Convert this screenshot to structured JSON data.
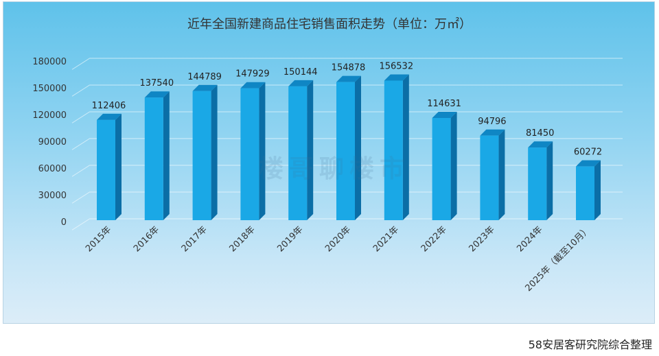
{
  "chart_data": {
    "type": "bar",
    "title": "近年全国新建商品住宅销售面积走势（单位：万㎡）",
    "categories": [
      "2015年",
      "2016年",
      "2017年",
      "2018年",
      "2019年",
      "2020年",
      "2021年",
      "2022年",
      "2023年",
      "2024年",
      "2025年（截至10月）"
    ],
    "values": [
      112406,
      137540,
      144789,
      147929,
      150144,
      154878,
      156532,
      114631,
      94796,
      81450,
      60272
    ],
    "yticks": [
      0,
      30000,
      60000,
      90000,
      120000,
      150000,
      180000
    ],
    "ylim": [
      0,
      180000
    ],
    "grid": true,
    "bar_color": "#1aa8e6"
  },
  "watermark": "楼哥聊楼市",
  "source_note": "58安居客研究院综合整理"
}
